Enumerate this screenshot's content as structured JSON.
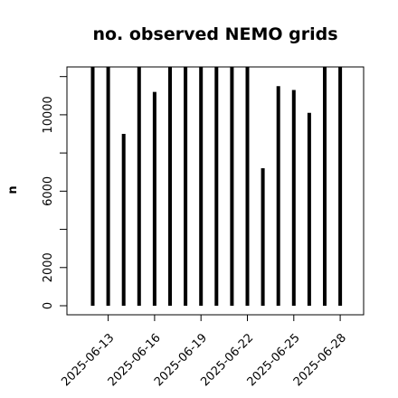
{
  "chart_data": {
    "type": "bar",
    "title": "no. observed NEMO grids",
    "xlabel": "",
    "ylabel": "n",
    "ylim": [
      0,
      12500
    ],
    "yticks": [
      0,
      2000,
      6000,
      10000
    ],
    "grid": false,
    "dates": [
      "2025-06-12",
      "2025-06-13",
      "2025-06-14",
      "2025-06-15",
      "2025-06-16",
      "2025-06-17",
      "2025-06-18",
      "2025-06-19",
      "2025-06-20",
      "2025-06-21",
      "2025-06-22",
      "2025-06-23",
      "2025-06-24",
      "2025-06-25",
      "2025-06-26",
      "2025-06-27",
      "2025-06-28"
    ],
    "values": [
      12500,
      12500,
      9000,
      12500,
      11200,
      12500,
      12500,
      12500,
      12500,
      12500,
      12500,
      7200,
      11500,
      11300,
      10100,
      12500,
      12500
    ],
    "xticks": [
      "2025-06-13",
      "2025-06-16",
      "2025-06-19",
      "2025-06-22",
      "2025-06-25",
      "2025-06-28"
    ]
  }
}
